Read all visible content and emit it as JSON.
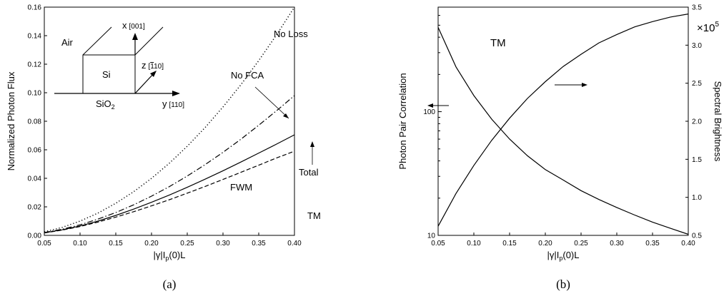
{
  "chart_data": [
    {
      "type": "line",
      "caption": "(a)",
      "xlabel": "|γ|I",
      "xlabel_sub": "p",
      "xlabel_tail": "(0)L",
      "ylabel": "Normalized Photon Flux",
      "xlim": [
        0.05,
        0.4
      ],
      "ylim": [
        0,
        0.16
      ],
      "x_ticks": [
        "0.05",
        "0.10",
        "0.15",
        "0.20",
        "0.25",
        "0.30",
        "0.35",
        "0.40"
      ],
      "y_ticks": [
        "0.00",
        "0.02",
        "0.04",
        "0.06",
        "0.08",
        "0.10",
        "0.12",
        "0.14",
        "0.16"
      ],
      "x": [
        0.05,
        0.075,
        0.1,
        0.125,
        0.15,
        0.175,
        0.2,
        0.225,
        0.25,
        0.275,
        0.3,
        0.325,
        0.35,
        0.375,
        0.4
      ],
      "series": [
        {
          "name": "No Loss",
          "style": "dotted",
          "values": [
            0.0025,
            0.0056,
            0.01,
            0.0156,
            0.0225,
            0.0306,
            0.04,
            0.0506,
            0.0625,
            0.0756,
            0.09,
            0.1056,
            0.1225,
            0.1406,
            0.16
          ]
        },
        {
          "name": "No FCA",
          "style": "dashdot",
          "values": [
            0.002,
            0.0043,
            0.0074,
            0.0114,
            0.016,
            0.0214,
            0.0275,
            0.0342,
            0.0416,
            0.0496,
            0.0582,
            0.0674,
            0.0772,
            0.0874,
            0.098
          ]
        },
        {
          "name": "Total",
          "style": "solid",
          "values": [
            0.0018,
            0.0039,
            0.0066,
            0.01,
            0.014,
            0.0184,
            0.0232,
            0.0283,
            0.0337,
            0.0394,
            0.0453,
            0.0514,
            0.0577,
            0.064,
            0.0705
          ]
        },
        {
          "name": "FWM",
          "style": "dashed",
          "values": [
            0.0017,
            0.0037,
            0.0062,
            0.0093,
            0.0128,
            0.0166,
            0.0207,
            0.025,
            0.0296,
            0.0343,
            0.0392,
            0.0442,
            0.0492,
            0.0543,
            0.059
          ]
        }
      ],
      "annotations": [
        "No Loss",
        "No FCA",
        "Total",
        "FWM",
        "TM"
      ],
      "inset": {
        "air": "Air",
        "si": "Si",
        "sio2": "SiO",
        "sio2_sub": "2",
        "x_axis": "x",
        "x_dir": "[001]",
        "z_axis": "z",
        "z_dir_pre": "[",
        "z_dir_bar": "1",
        "z_dir_post": "10]",
        "y_axis": "y",
        "y_dir": "[110]"
      }
    },
    {
      "type": "line",
      "caption": "(b)",
      "xlabel": "|γ|I",
      "xlabel_sub": "p",
      "xlabel_tail": "(0)L",
      "ylabel_left": "Photon Pair Correlation",
      "ylabel_right": "Spectral Brightness",
      "right_multiplier": "×10",
      "right_multiplier_exp": "5",
      "left_scale": "log",
      "xlim": [
        0.05,
        0.4
      ],
      "ylim_left": [
        10,
        700
      ],
      "ylim_right": [
        0.5,
        3.5
      ],
      "x_ticks": [
        "0.05",
        "0.10",
        "0.15",
        "0.20",
        "0.25",
        "0.30",
        "0.35",
        "0.40"
      ],
      "y_ticks_left": [
        "10",
        "100"
      ],
      "y_ticks_right": [
        "0.5",
        "1.0",
        "1.5",
        "2.0",
        "2.5",
        "3.0",
        "3.5"
      ],
      "x": [
        0.05,
        0.075,
        0.1,
        0.125,
        0.15,
        0.175,
        0.2,
        0.225,
        0.25,
        0.275,
        0.3,
        0.325,
        0.35,
        0.375,
        0.4
      ],
      "series": [
        {
          "name": "Photon Pair Correlation",
          "axis": "left",
          "values": [
            480,
            230,
            135,
            87,
            60,
            44,
            34,
            28,
            23,
            19.5,
            16.8,
            14.6,
            12.8,
            11.4,
            10.2
          ]
        },
        {
          "name": "Spectral Brightness",
          "axis": "right",
          "values": [
            0.62,
            1.05,
            1.42,
            1.75,
            2.04,
            2.3,
            2.52,
            2.72,
            2.88,
            3.03,
            3.14,
            3.24,
            3.31,
            3.37,
            3.41
          ]
        }
      ],
      "annotations": [
        "TM"
      ]
    }
  ]
}
